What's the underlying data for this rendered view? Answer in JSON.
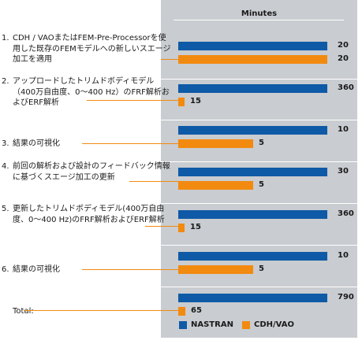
{
  "chart_data": {
    "type": "bar",
    "orientation": "horizontal",
    "value_header": "Minutes",
    "categories": [
      {
        "num": "1.",
        "text": "CDH / VAOまたはFEM-Pre-Processorを使用した既存のFEMモデルへの新しいスエージ加工を適用"
      },
      {
        "num": "2.",
        "text": "アップロードしたトリムドボディモデル（400万自由度、0～400 Hz）のFRF解析およびERF解析"
      },
      {
        "num": "3.",
        "text": "結果の可視化"
      },
      {
        "num": "4.",
        "text": "前回の解析および設計のフィードバック情報に基づくスエージ加工の更新"
      },
      {
        "num": "5.",
        "text": "更新したトリムドボディモデル(400万自由度、0～400 Hz)のFRF解析およびERF解析"
      },
      {
        "num": "6.",
        "text": "結果の可視化"
      },
      {
        "num": "",
        "text": "Total:"
      }
    ],
    "series": [
      {
        "name": "NASTRAN",
        "values": [
          20,
          360,
          10,
          30,
          360,
          10,
          790
        ],
        "color": "#0e5aa7"
      },
      {
        "name": "CDH/VAO",
        "values": [
          20,
          15,
          5,
          5,
          15,
          5,
          65
        ],
        "color": "#f28a10"
      }
    ],
    "scale_note": "bars are not drawn to a linear scale"
  },
  "legend": {
    "nastran": "NASTRAN",
    "cdh": "CDH/VAO"
  }
}
